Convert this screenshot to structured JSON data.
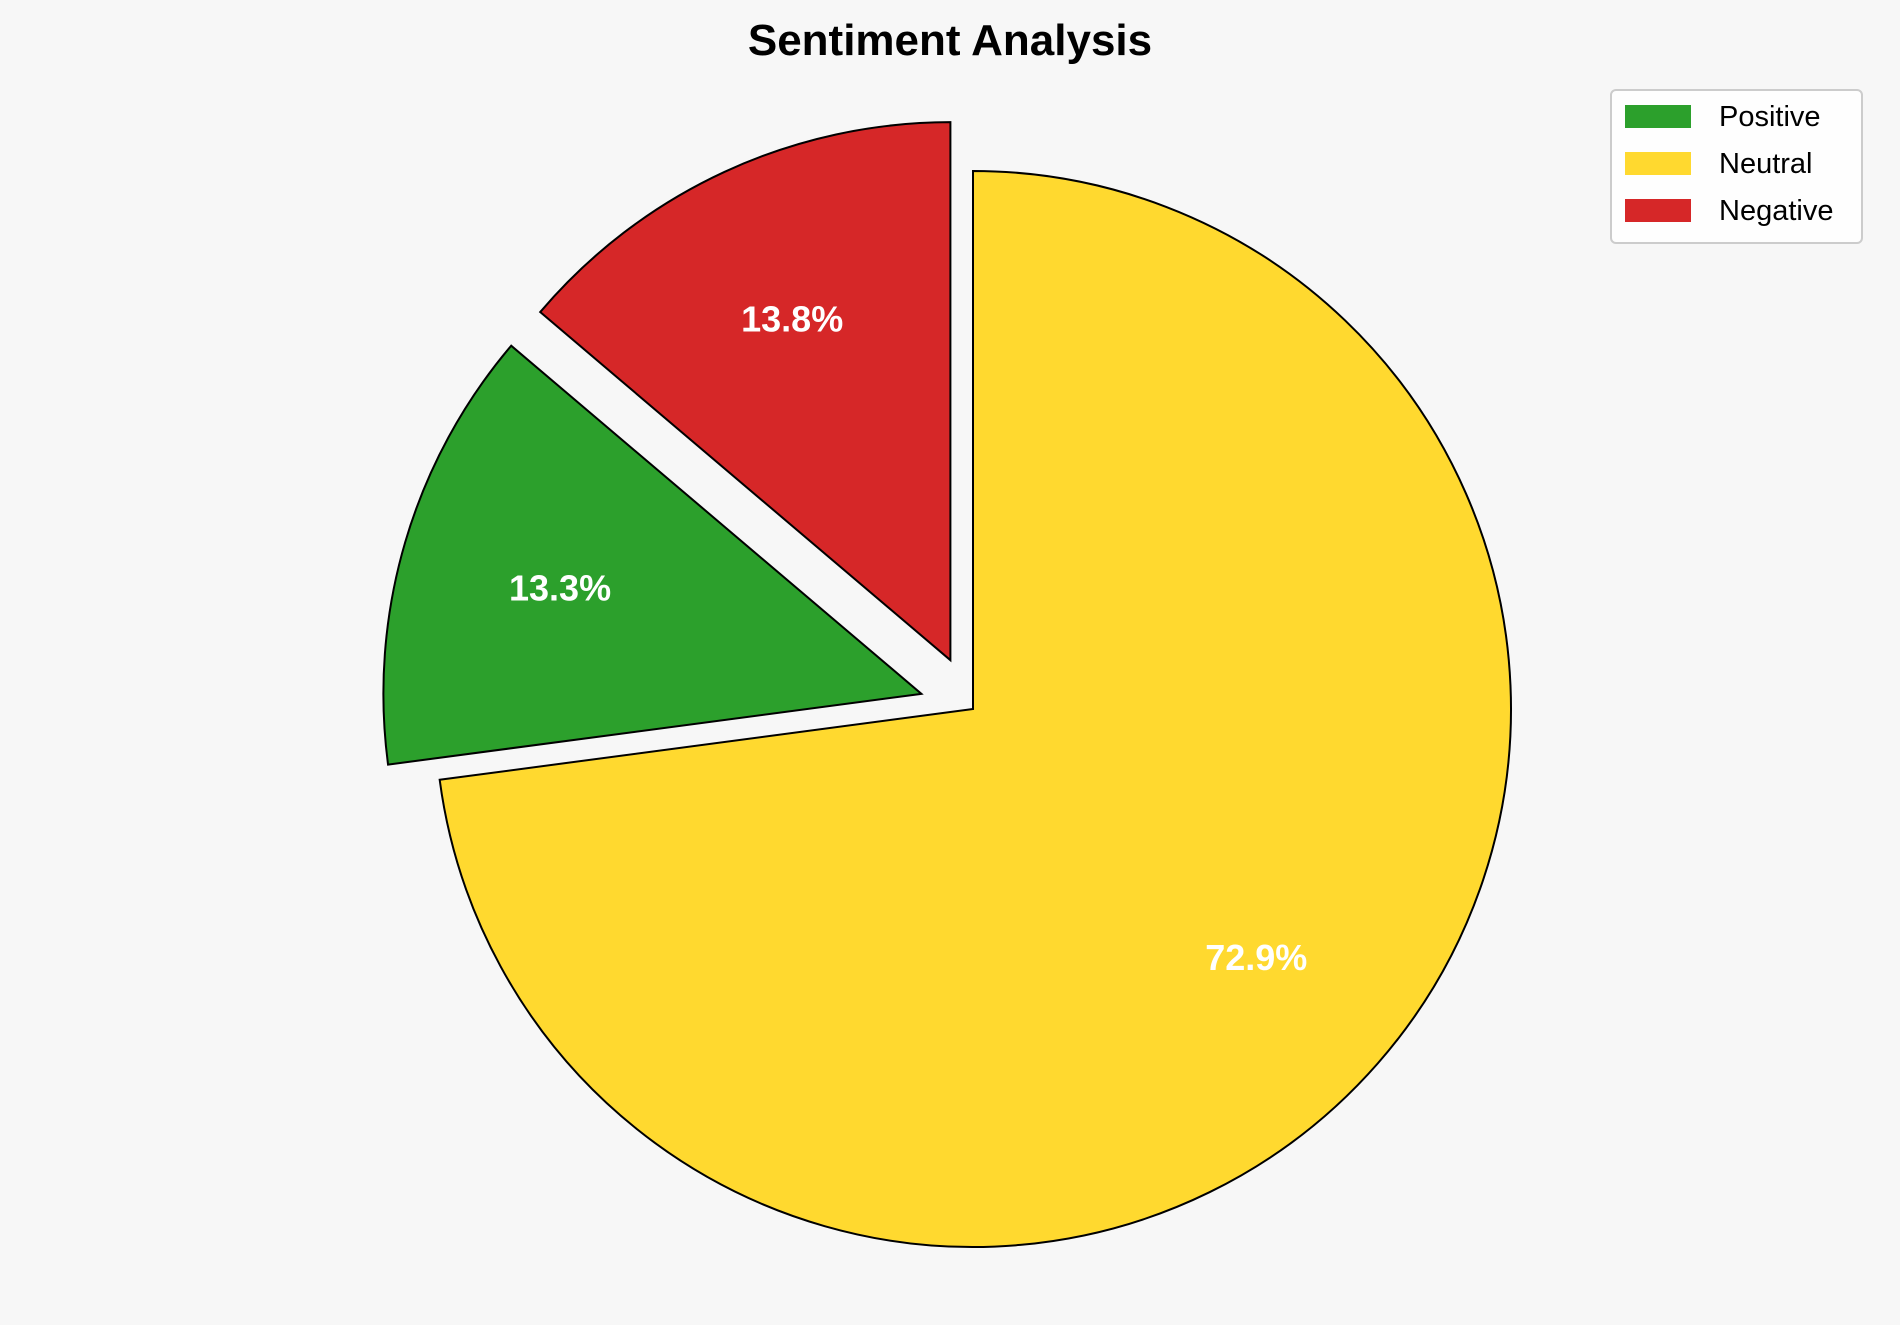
{
  "chart_data": {
    "type": "pie",
    "title": "Sentiment Analysis",
    "categories": [
      "Positive",
      "Neutral",
      "Negative"
    ],
    "values": [
      13.3,
      72.9,
      13.8
    ],
    "labels": [
      "13.3%",
      "72.9%",
      "13.8%"
    ],
    "colors": [
      "#2ca02c",
      "#ffd92f",
      "#d62728"
    ],
    "exploded": [
      "Positive",
      "Negative"
    ],
    "legend_position": "top-right",
    "start_angle_deg": 90,
    "direction": "clockwise"
  }
}
